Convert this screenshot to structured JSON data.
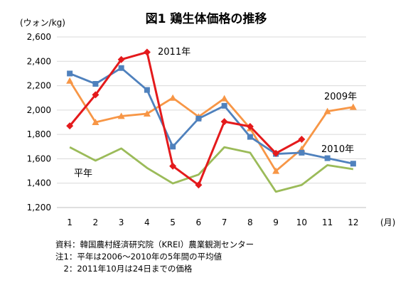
{
  "chart_data": {
    "type": "line",
    "title": "図1  鶏生体価格の推移",
    "ylabel": "(ウォン/kg)",
    "xlabel": "(月)",
    "x": [
      1,
      2,
      3,
      4,
      5,
      6,
      7,
      8,
      9,
      10,
      11,
      12
    ],
    "ylim": [
      1200,
      2600
    ],
    "yticks": [
      1200,
      1400,
      1600,
      1800,
      2000,
      2200,
      2400,
      2600
    ],
    "ytick_labels": [
      "1,200",
      "1,400",
      "1,600",
      "1,800",
      "2,000",
      "2,200",
      "2,400",
      "2,600"
    ],
    "grid": true,
    "legend": "none",
    "series": [
      {
        "name": "平年",
        "color": "#9bbb59",
        "marker": "none",
        "values": [
          1695,
          1585,
          1685,
          1525,
          1398,
          1470,
          1695,
          1650,
          1330,
          1385,
          1548,
          1515
        ]
      },
      {
        "name": "2009年",
        "color": "#f79646",
        "marker": "triangle",
        "values": [
          2240,
          1900,
          1950,
          1970,
          2100,
          1945,
          2095,
          1850,
          1500,
          1680,
          1990,
          2025
        ]
      },
      {
        "name": "2010年",
        "color": "#4f81bd",
        "marker": "square",
        "values": [
          2300,
          2215,
          2345,
          2165,
          1700,
          1930,
          2035,
          1780,
          1640,
          1650,
          1605,
          1560
        ]
      },
      {
        "name": "2011年",
        "color": "#e41a1c",
        "marker": "diamond",
        "values": [
          1870,
          2125,
          2415,
          2475,
          1540,
          1385,
          1905,
          1865,
          1645,
          1760,
          null,
          null
        ]
      }
    ]
  },
  "notes": [
    "資料：韓国農村経済研究院（KREI）農業観測センター",
    "注1：平年は2006～2010年の5年間の平均値",
    "　2：2011年10月は24日までの価格"
  ]
}
